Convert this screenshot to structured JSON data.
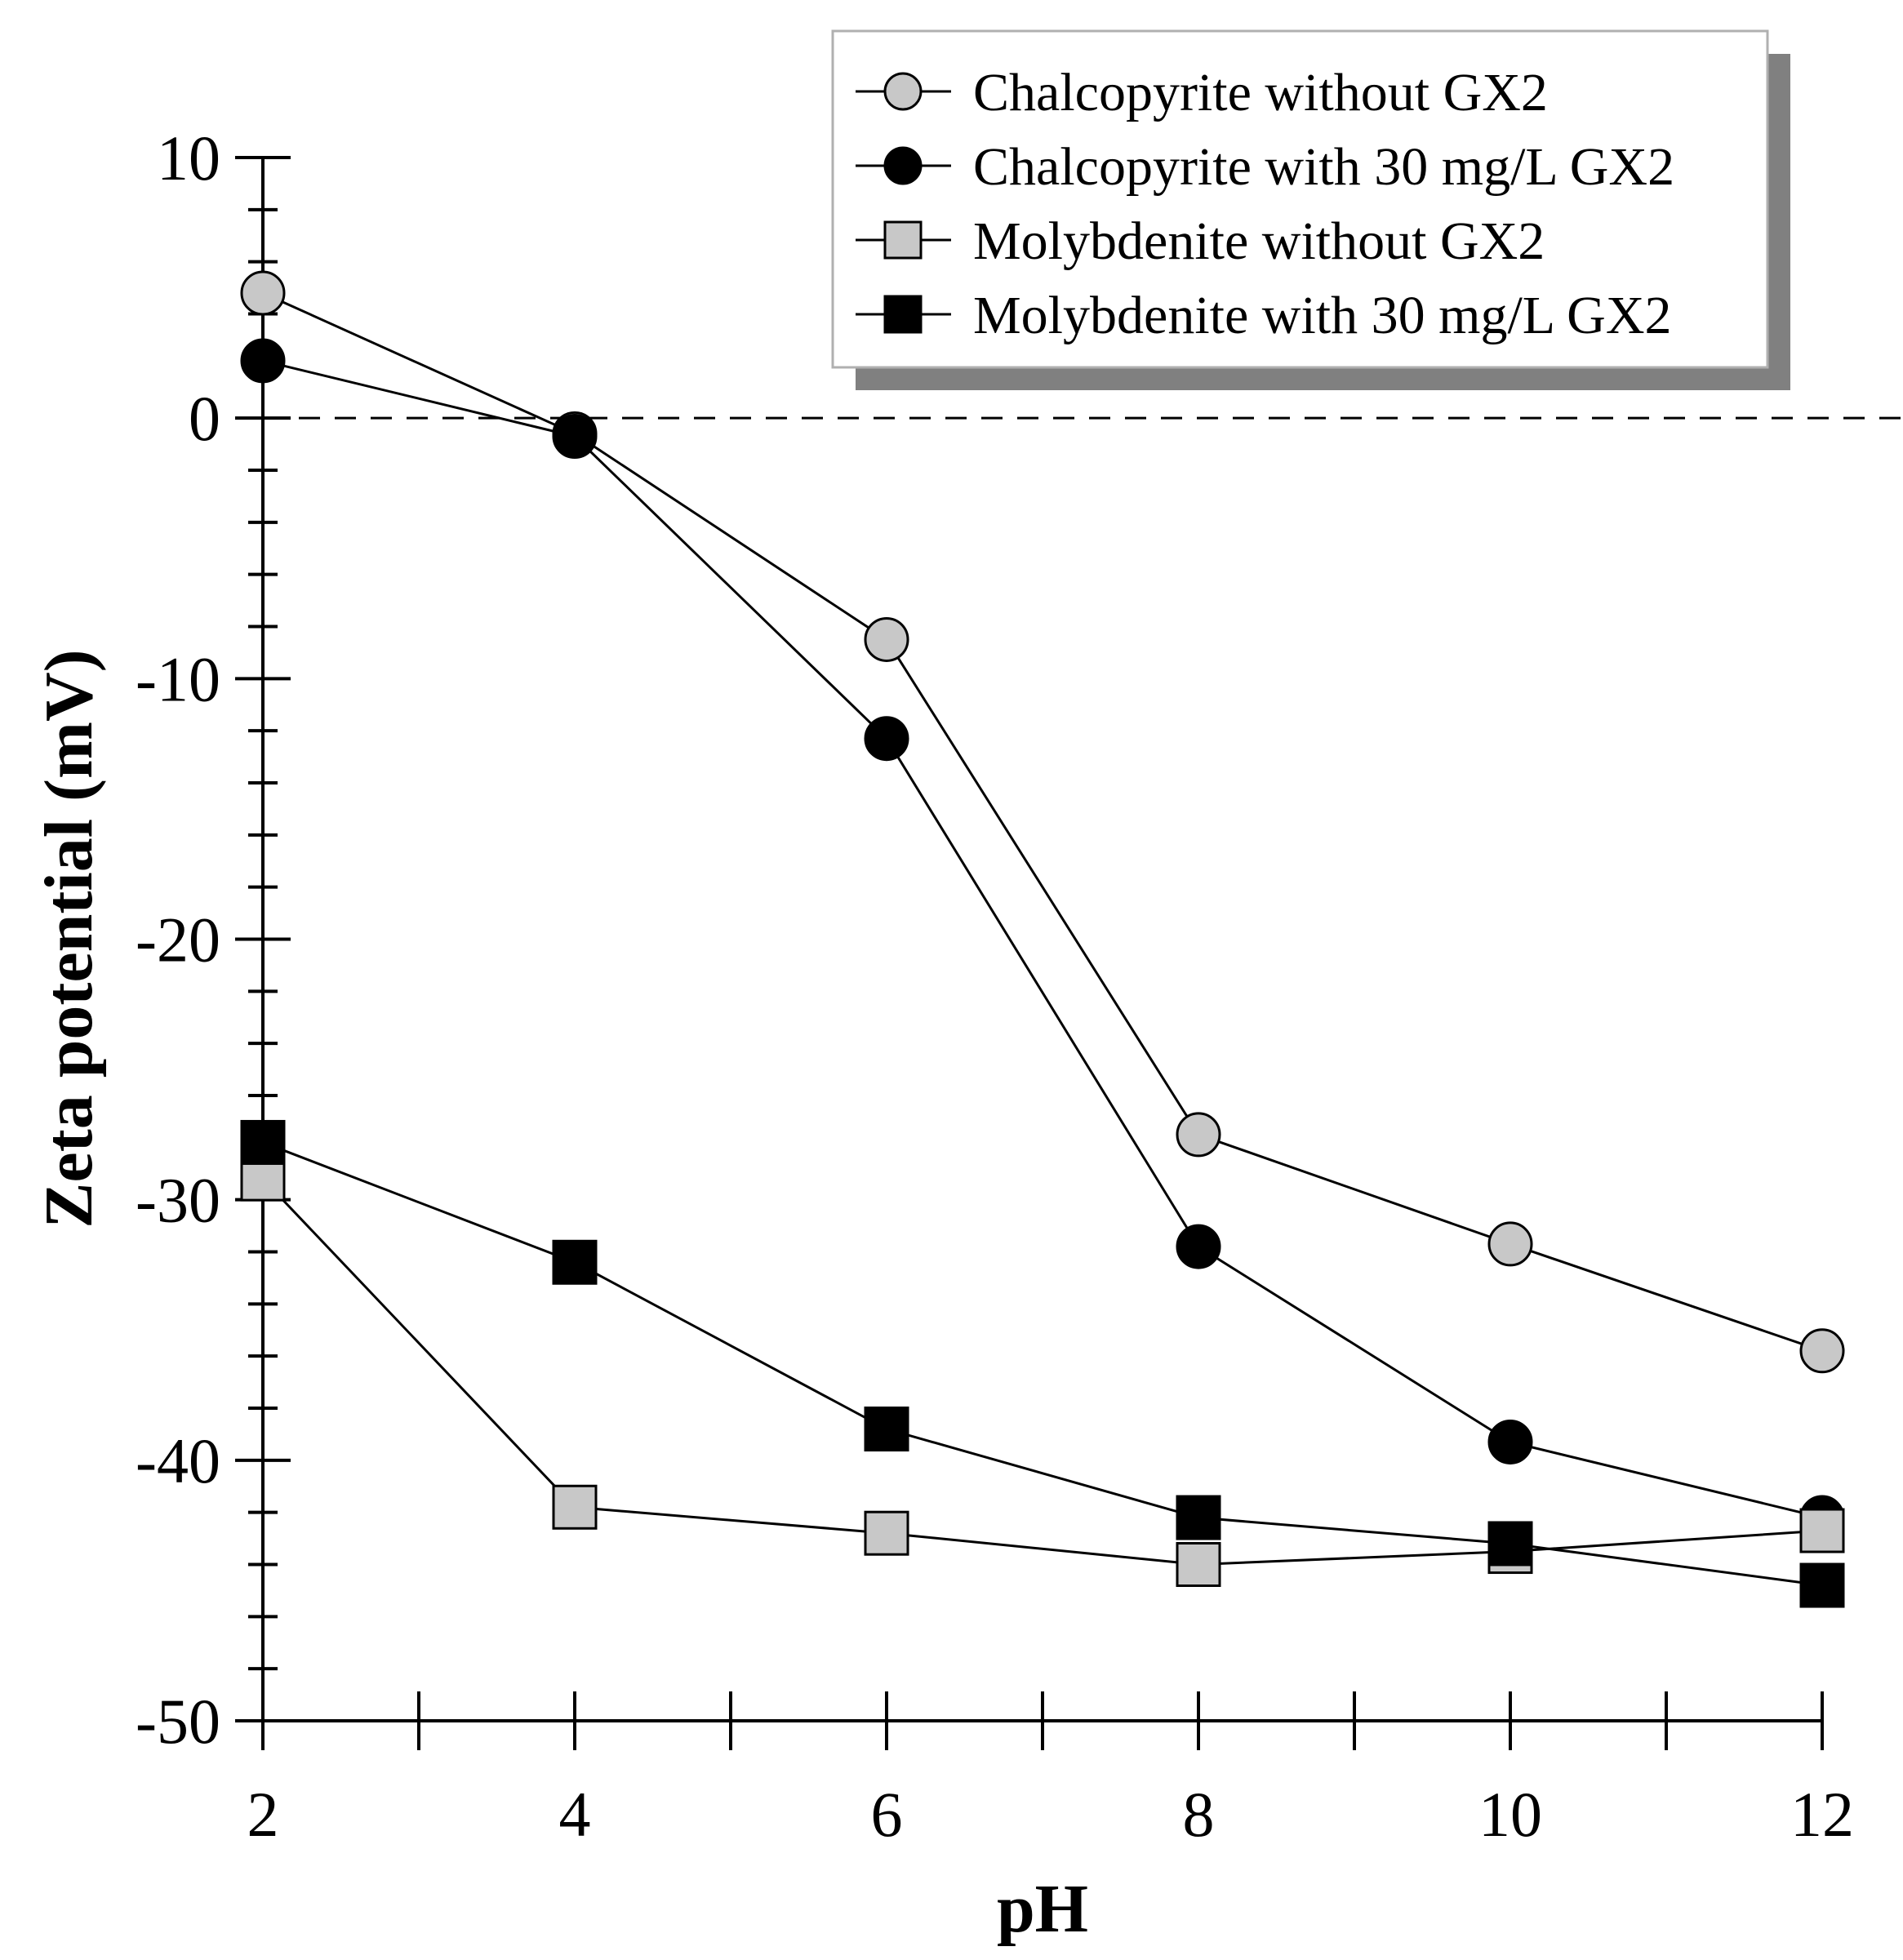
{
  "chart_data": {
    "type": "line",
    "title": "",
    "xlabel": "pH",
    "ylabel": "Zeta potential (mV)",
    "xlim": [
      2,
      12
    ],
    "ylim": [
      -50,
      10
    ],
    "x_ticks": [
      2,
      4,
      6,
      8,
      10,
      12
    ],
    "x_tick_labels": [
      "2",
      "4",
      "6",
      "8",
      "10",
      "12"
    ],
    "y_ticks": [
      10,
      0,
      -10,
      -20,
      -30,
      -40,
      -50
    ],
    "y_tick_labels": [
      "10",
      "0",
      "-10",
      "-20",
      "-30",
      "-40",
      "-50"
    ],
    "reference_line": 0,
    "legend_position": "top-right",
    "series": [
      {
        "name": "Chalcopyrite without GX2",
        "marker": "circle",
        "fill": "#c8c8c8",
        "x": [
          2,
          4,
          6,
          8,
          10,
          12
        ],
        "y": [
          4.8,
          -0.6,
          -8.5,
          -27.5,
          -31.7,
          -35.8
        ]
      },
      {
        "name": "Chalcopyrite with 30 mg/L GX2",
        "marker": "circle",
        "fill": "#000000",
        "x": [
          2,
          4,
          6,
          8,
          10,
          12
        ],
        "y": [
          2.2,
          -0.7,
          -12.3,
          -31.8,
          -39.3,
          -42.2
        ]
      },
      {
        "name": "Molybdenite without GX2",
        "marker": "square",
        "fill": "#c8c8c8",
        "x": [
          2,
          4,
          6,
          8,
          10,
          12
        ],
        "y": [
          -29.2,
          -41.8,
          -42.8,
          -44.0,
          -43.5,
          -42.7
        ]
      },
      {
        "name": "Molybdenite with 30 mg/L GX2",
        "marker": "square",
        "fill": "#000000",
        "x": [
          2,
          4,
          6,
          8,
          10,
          12
        ],
        "y": [
          -27.8,
          -32.4,
          -38.8,
          -42.2,
          -43.2,
          -44.8
        ]
      }
    ]
  }
}
